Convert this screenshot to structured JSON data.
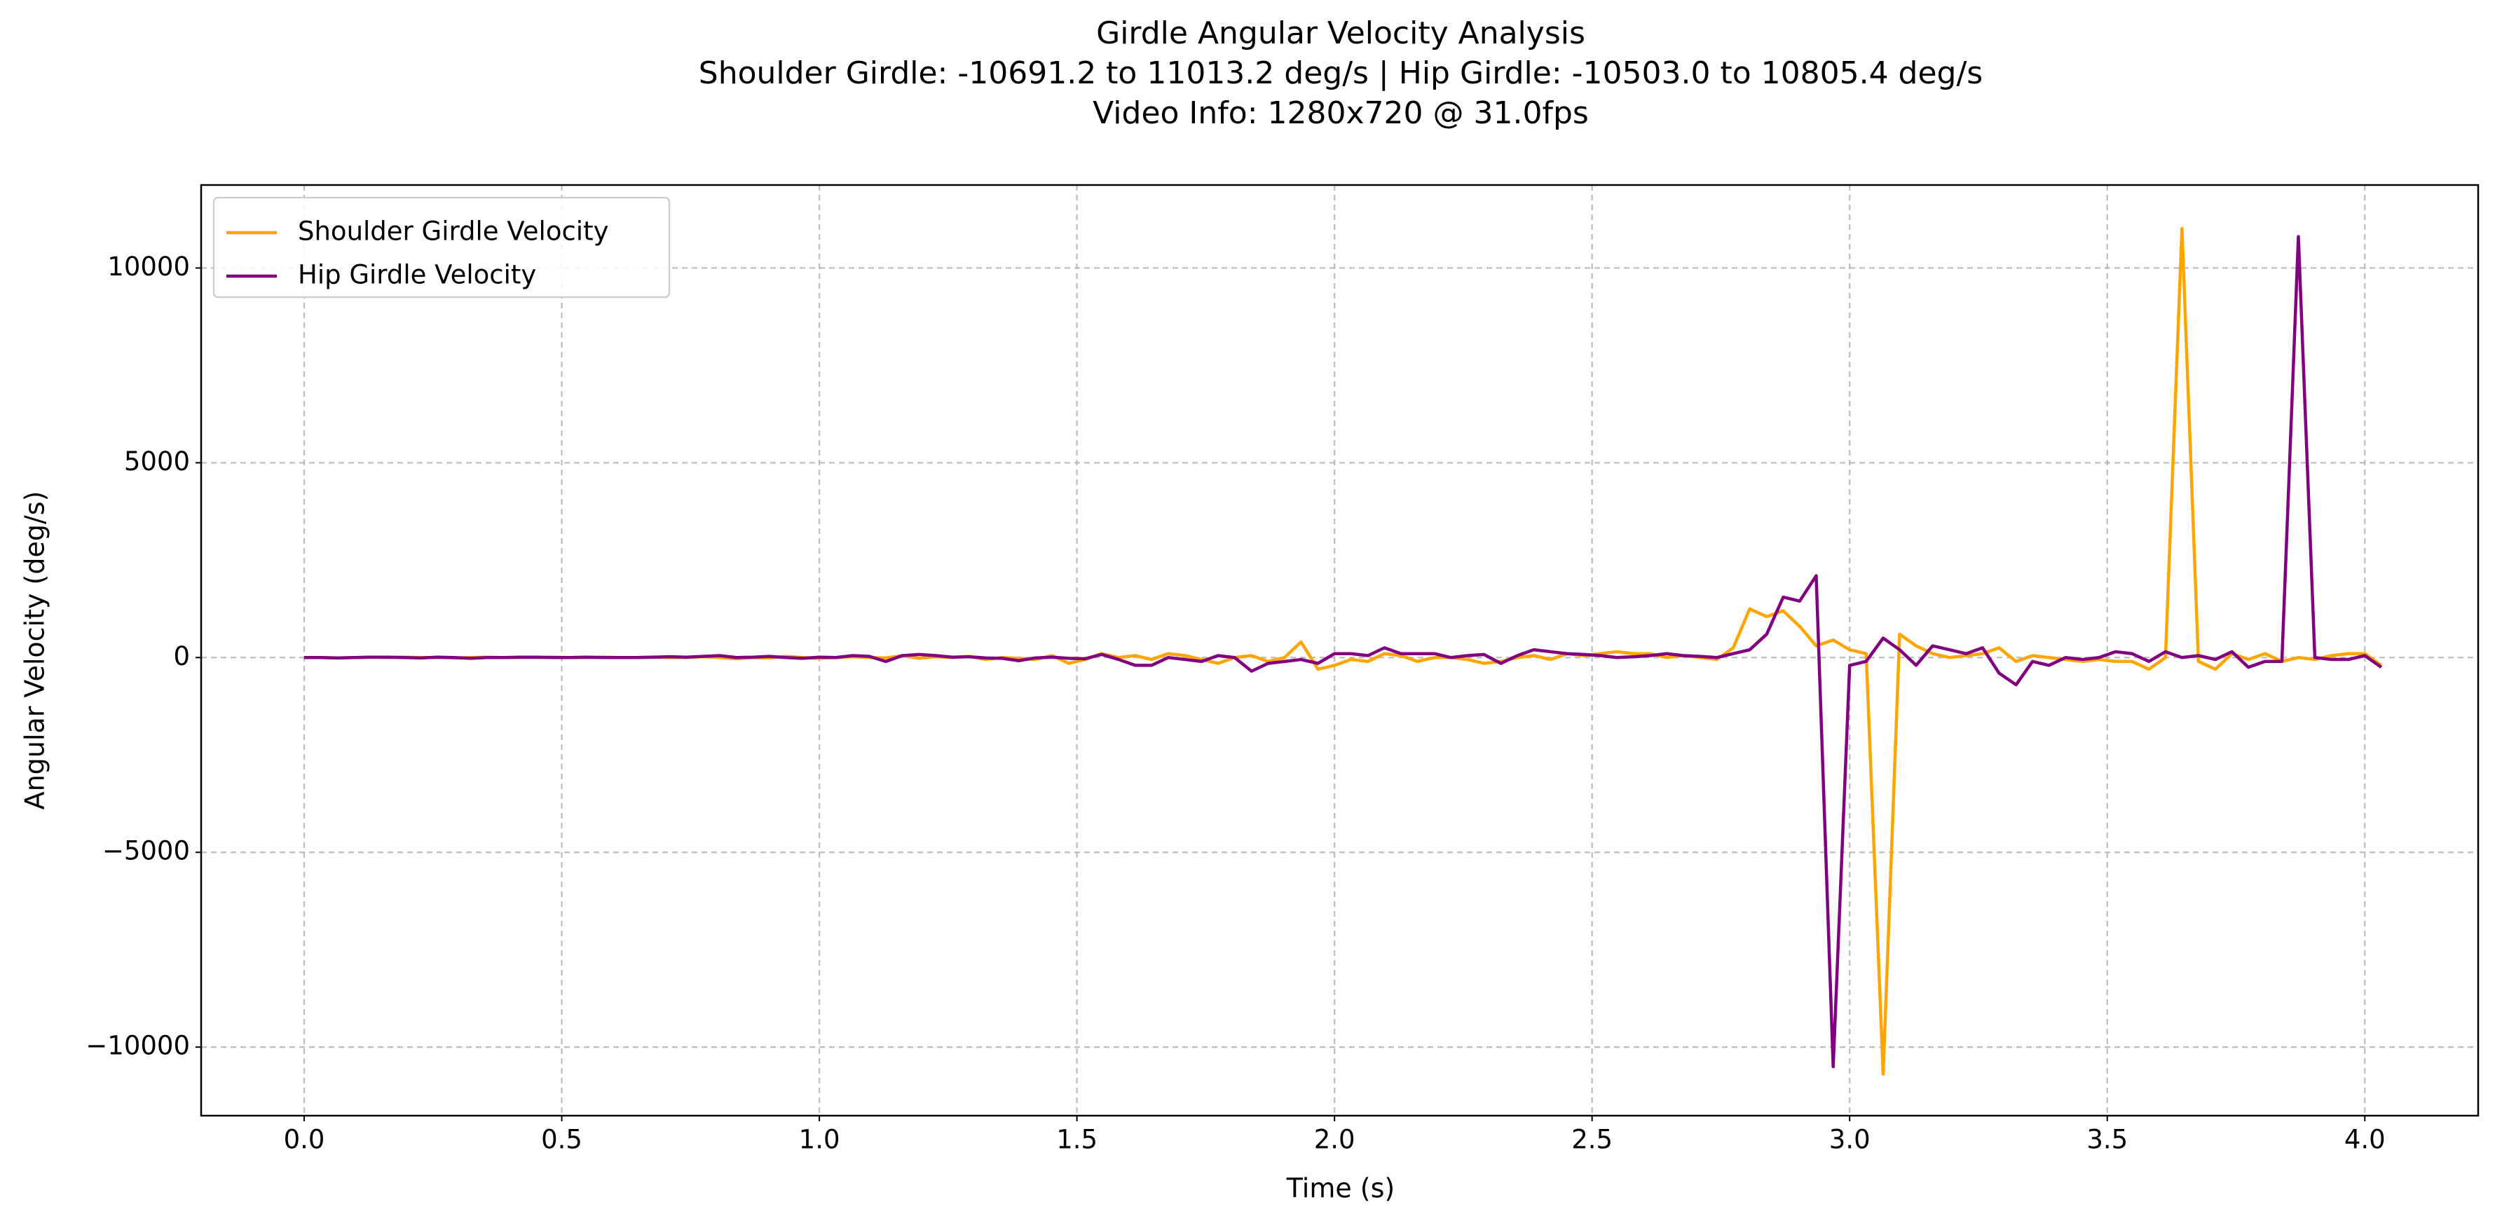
{
  "chart_data": {
    "type": "line",
    "title": "Girdle Angular Velocity Analysis",
    "subtitle": [
      "Shoulder Girdle: -10691.2 to 11013.2 deg/s | Hip Girdle: -10503.0 to 10805.4 deg/s",
      "Video Info: 1280x720 @ 31.0fps"
    ],
    "x_label": "Time (s)",
    "y_label": "Angular Velocity (deg/s)",
    "x": [
      0,
      0.032,
      0.065,
      0.097,
      0.129,
      0.161,
      0.194,
      0.226,
      0.258,
      0.29,
      0.323,
      0.355,
      0.387,
      0.419,
      0.452,
      0.484,
      0.516,
      0.548,
      0.581,
      0.613,
      0.645,
      0.677,
      0.71,
      0.742,
      0.774,
      0.806,
      0.839,
      0.871,
      0.903,
      0.935,
      0.968,
      1,
      1.032,
      1.065,
      1.097,
      1.129,
      1.161,
      1.194,
      1.226,
      1.258,
      1.29,
      1.323,
      1.355,
      1.387,
      1.419,
      1.452,
      1.484,
      1.516,
      1.548,
      1.581,
      1.613,
      1.645,
      1.677,
      1.71,
      1.742,
      1.774,
      1.806,
      1.839,
      1.871,
      1.903,
      1.935,
      1.968,
      2,
      2.032,
      2.065,
      2.097,
      2.129,
      2.161,
      2.194,
      2.226,
      2.258,
      2.29,
      2.323,
      2.355,
      2.387,
      2.419,
      2.452,
      2.484,
      2.516,
      2.548,
      2.581,
      2.613,
      2.645,
      2.677,
      2.71,
      2.742,
      2.774,
      2.806,
      2.839,
      2.871,
      2.903,
      2.935,
      2.968,
      3,
      3.032,
      3.065,
      3.097,
      3.129,
      3.161,
      3.194,
      3.226,
      3.258,
      3.29,
      3.323,
      3.355,
      3.387,
      3.419,
      3.452,
      3.484,
      3.516,
      3.548,
      3.581,
      3.613,
      3.645,
      3.677,
      3.71,
      3.742,
      3.774,
      3.806,
      3.839,
      3.871,
      3.903,
      3.935,
      3.968,
      4,
      4.032
    ],
    "series": [
      {
        "name": "Shoulder Girdle Velocity",
        "color": "#ffa500",
        "values": [
          0,
          0,
          -10,
          0,
          10,
          0,
          10,
          0,
          0,
          -10,
          0,
          10,
          0,
          0,
          0,
          10,
          0,
          0,
          10,
          0,
          0,
          10,
          0,
          0,
          20,
          0,
          -30,
          0,
          -10,
          30,
          0,
          -20,
          0,
          20,
          0,
          -10,
          50,
          -20,
          20,
          0,
          30,
          -50,
          0,
          -20,
          -50,
          50,
          -150,
          -50,
          100,
          0,
          50,
          -50,
          100,
          50,
          -50,
          -150,
          0,
          50,
          -100,
          0,
          400,
          -300,
          -200,
          -50,
          -100,
          100,
          50,
          -100,
          0,
          0,
          -50,
          -150,
          -100,
          0,
          50,
          -50,
          100,
          50,
          100,
          150,
          100,
          100,
          0,
          50,
          0,
          -50,
          250,
          1250,
          1050,
          1200,
          800,
          300,
          450,
          200,
          100,
          -10691.2,
          600,
          300,
          100,
          0,
          50,
          100,
          250,
          -100,
          50,
          0,
          -50,
          -100,
          -50,
          -100,
          -100,
          -300,
          0,
          11013.2,
          -100,
          -300,
          100,
          -50,
          100,
          -100,
          0,
          -50,
          50,
          100,
          100,
          -200
        ]
      },
      {
        "name": "Hip Girdle Velocity",
        "color": "#800080",
        "values": [
          0,
          0,
          -10,
          0,
          10,
          10,
          0,
          -10,
          10,
          0,
          -20,
          0,
          0,
          10,
          10,
          0,
          0,
          10,
          0,
          0,
          0,
          10,
          20,
          10,
          30,
          50,
          0,
          10,
          30,
          0,
          -20,
          10,
          0,
          50,
          30,
          -100,
          50,
          80,
          50,
          10,
          20,
          -10,
          -20,
          -80,
          -10,
          10,
          -20,
          -30,
          80,
          -50,
          -200,
          -200,
          0,
          -50,
          -100,
          50,
          0,
          -350,
          -150,
          -100,
          -50,
          -150,
          100,
          100,
          50,
          250,
          100,
          100,
          100,
          0,
          50,
          80,
          -150,
          50,
          200,
          150,
          100,
          80,
          50,
          0,
          20,
          50,
          100,
          50,
          30,
          0,
          100,
          200,
          600,
          1550,
          1450,
          2100,
          -10503.0,
          -200,
          -100,
          500,
          200,
          -200,
          300,
          200,
          100,
          250,
          -400,
          -700,
          -100,
          -200,
          0,
          -50,
          0,
          150,
          100,
          -100,
          150,
          0,
          50,
          -50,
          150,
          -250,
          -100,
          -100,
          10805.4,
          0,
          -50,
          -50,
          50,
          -250
        ]
      }
    ],
    "xlim": [
      -0.2,
      4.22
    ],
    "ylim": [
      -11760,
      12130
    ],
    "xticks": [
      {
        "value": 0,
        "label": "0.0"
      },
      {
        "value": 0.5,
        "label": "0.5"
      },
      {
        "value": 1,
        "label": "1.0"
      },
      {
        "value": 1.5,
        "label": "1.5"
      },
      {
        "value": 2,
        "label": "2.0"
      },
      {
        "value": 2.5,
        "label": "2.5"
      },
      {
        "value": 3,
        "label": "3.0"
      },
      {
        "value": 3.5,
        "label": "3.5"
      },
      {
        "value": 4,
        "label": "4.0"
      }
    ],
    "yticks": [
      {
        "value": -10000,
        "label": "−10000"
      },
      {
        "value": -5000,
        "label": "−5000"
      },
      0,
      5000,
      10000
    ],
    "grid": true,
    "legend": "upper left"
  }
}
